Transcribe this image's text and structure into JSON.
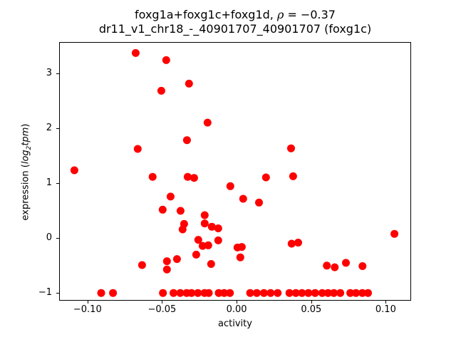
{
  "figure": {
    "title": {
      "prefix": "foxg1a+foxg1c+foxg1d, ",
      "rho": "ρ",
      "suffix": " = −0.37"
    },
    "subtitle": "dr11_v1_chr18_-_40901707_40901707 (foxg1c)"
  },
  "axes": {
    "xlabel": "activity",
    "ylabel": {
      "prefix": "expression (",
      "italic1": "log",
      "sub": "2",
      "italic2": "tpm",
      "suffix": ")"
    }
  },
  "chart_data": {
    "type": "scatter",
    "title": "foxg1a+foxg1c+foxg1d, ρ = −0.37",
    "subtitle": "dr11_v1_chr18_-_40901707_40901707 (foxg1c)",
    "xlabel": "activity",
    "ylabel": "expression (log2 tpm)",
    "grid": false,
    "legend": "none",
    "marker_color": "#ff0000",
    "marker_radius_px": 5.5,
    "xlim": [
      -0.119,
      0.117
    ],
    "ylim": [
      -1.15,
      3.57
    ],
    "xticks": [
      -0.1,
      -0.05,
      0.0,
      0.05,
      0.1
    ],
    "xtick_labels": [
      "−0.10",
      "−0.05",
      "0.00",
      "0.05",
      "0.10"
    ],
    "yticks": [
      -1,
      0,
      1,
      2,
      3
    ],
    "ytick_labels": [
      "−1",
      "0",
      "1",
      "2",
      "3"
    ],
    "points": [
      [
        -0.0677,
        3.37
      ],
      [
        -0.0472,
        3.24
      ],
      [
        -0.0319,
        2.81
      ],
      [
        -0.0505,
        2.68
      ],
      [
        -0.0195,
        2.1
      ],
      [
        -0.0333,
        1.78
      ],
      [
        -0.0663,
        1.62
      ],
      [
        -0.1088,
        1.23
      ],
      [
        0.0365,
        1.63
      ],
      [
        -0.0563,
        1.11
      ],
      [
        -0.0328,
        1.11
      ],
      [
        -0.0285,
        1.09
      ],
      [
        -0.0042,
        0.94
      ],
      [
        0.0197,
        1.1
      ],
      [
        0.0379,
        1.12
      ],
      [
        -0.0443,
        0.75
      ],
      [
        0.0044,
        0.71
      ],
      [
        0.015,
        0.64
      ],
      [
        -0.0496,
        0.51
      ],
      [
        -0.0376,
        0.49
      ],
      [
        -0.0214,
        0.41
      ],
      [
        -0.0214,
        0.26
      ],
      [
        -0.0166,
        0.2
      ],
      [
        -0.0123,
        0.17
      ],
      [
        -0.0352,
        0.25
      ],
      [
        -0.0362,
        0.15
      ],
      [
        0.1058,
        0.07
      ],
      [
        -0.0257,
        -0.04
      ],
      [
        -0.0123,
        -0.05
      ],
      [
        -0.0228,
        -0.15
      ],
      [
        -0.019,
        -0.14
      ],
      [
        0.0006,
        -0.18
      ],
      [
        0.0035,
        -0.17
      ],
      [
        0.0025,
        -0.36
      ],
      [
        -0.0271,
        -0.31
      ],
      [
        -0.0171,
        -0.48
      ],
      [
        0.0369,
        -0.11
      ],
      [
        0.0413,
        -0.09
      ],
      [
        -0.0634,
        -0.5
      ],
      [
        -0.0467,
        -0.43
      ],
      [
        -0.0467,
        -0.58
      ],
      [
        -0.04,
        -0.39
      ],
      [
        0.0605,
        -0.51
      ],
      [
        0.0658,
        -0.54
      ],
      [
        0.0733,
        -0.46
      ],
      [
        0.0844,
        -0.52
      ],
      [
        -0.0908,
        -1.01
      ],
      [
        -0.0829,
        -1.01
      ],
      [
        -0.0494,
        -1.01
      ],
      [
        -0.0423,
        -1.01
      ],
      [
        -0.0378,
        -1.01
      ],
      [
        -0.0335,
        -1.01
      ],
      [
        -0.0303,
        -1.01
      ],
      [
        -0.026,
        -1.01
      ],
      [
        -0.0215,
        -1.01
      ],
      [
        -0.0187,
        -1.01
      ],
      [
        -0.012,
        -1.01
      ],
      [
        -0.0083,
        -1.01
      ],
      [
        -0.0045,
        -1.01
      ],
      [
        0.0091,
        -1.01
      ],
      [
        0.0135,
        -1.01
      ],
      [
        0.0183,
        -1.01
      ],
      [
        0.0228,
        -1.01
      ],
      [
        0.0275,
        -1.01
      ],
      [
        0.0354,
        -1.01
      ],
      [
        0.0397,
        -1.01
      ],
      [
        0.0438,
        -1.01
      ],
      [
        0.0481,
        -1.01
      ],
      [
        0.0526,
        -1.01
      ],
      [
        0.0574,
        -1.01
      ],
      [
        0.0613,
        -1.01
      ],
      [
        0.0652,
        -1.01
      ],
      [
        0.0695,
        -1.01
      ],
      [
        0.0762,
        -1.01
      ],
      [
        0.08,
        -1.01
      ],
      [
        0.0843,
        -1.01
      ],
      [
        0.0881,
        -1.01
      ]
    ]
  }
}
